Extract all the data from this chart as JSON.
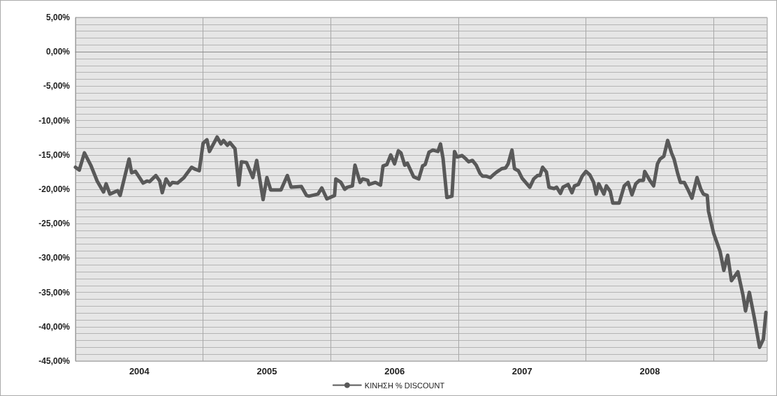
{
  "chart_data": {
    "type": "line",
    "x": [
      2004.0,
      2004.03,
      2004.07,
      2004.12,
      2004.17,
      2004.22,
      2004.24,
      2004.27,
      2004.33,
      2004.35,
      2004.42,
      2004.44,
      2004.47,
      2004.53,
      2004.56,
      2004.58,
      2004.63,
      2004.66,
      2004.68,
      2004.71,
      2004.74,
      2004.76,
      2004.8,
      2004.85,
      2004.87,
      2004.91,
      2004.94,
      2004.97,
      2005.0,
      2005.03,
      2005.05,
      2005.11,
      2005.14,
      2005.16,
      2005.19,
      2005.21,
      2005.25,
      2005.28,
      2005.3,
      2005.34,
      2005.39,
      2005.42,
      2005.47,
      2005.5,
      2005.53,
      2005.61,
      2005.66,
      2005.69,
      2005.77,
      2005.81,
      2005.83,
      2005.9,
      2005.93,
      2005.97,
      2006.03,
      2006.04,
      2006.08,
      2006.11,
      2006.13,
      2006.17,
      2006.19,
      2006.23,
      2006.25,
      2006.29,
      2006.3,
      2006.35,
      2006.39,
      2006.41,
      2006.44,
      2006.47,
      2006.5,
      2006.53,
      2006.55,
      2006.58,
      2006.6,
      2006.65,
      2006.69,
      2006.72,
      2006.74,
      2006.77,
      2006.8,
      2006.84,
      2006.86,
      2006.88,
      2006.91,
      2006.95,
      2006.97,
      2006.99,
      2007.03,
      2007.06,
      2007.08,
      2007.11,
      2007.14,
      2007.17,
      2007.19,
      2007.22,
      2007.25,
      2007.28,
      2007.3,
      2007.34,
      2007.37,
      2007.39,
      2007.42,
      2007.44,
      2007.47,
      2007.5,
      2007.56,
      2007.59,
      2007.62,
      2007.64,
      2007.66,
      2007.69,
      2007.71,
      2007.75,
      2007.77,
      2007.8,
      2007.82,
      2007.86,
      2007.89,
      2007.91,
      2007.94,
      2007.97,
      2008.0,
      2008.03,
      2008.06,
      2008.08,
      2008.1,
      2008.14,
      2008.16,
      2008.19,
      2008.21,
      2008.26,
      2008.3,
      2008.33,
      2008.36,
      2008.39,
      2008.42,
      2008.45,
      2008.46,
      2008.5,
      2008.53,
      2008.56,
      2008.58,
      2008.61,
      2008.64,
      2008.67,
      2008.69,
      2008.72,
      2008.74,
      2008.77,
      2008.8,
      2008.83,
      2008.87,
      2008.9,
      2008.92,
      2008.95,
      2008.96,
      2009.0,
      2009.05,
      2009.08,
      2009.11,
      2009.14,
      2009.19,
      2009.23,
      2009.25,
      2009.28,
      2009.32,
      2009.36,
      2009.39,
      2009.41
    ],
    "series": [
      {
        "name": "ΚΙΝΗΣΗ % DISCOUNT",
        "color": "#595959",
        "values": [
          -16.8,
          -17.2,
          -14.7,
          -16.5,
          -18.8,
          -20.4,
          -19.2,
          -20.7,
          -20.2,
          -20.9,
          -15.6,
          -17.6,
          -17.4,
          -19.1,
          -18.8,
          -18.9,
          -18.0,
          -18.8,
          -20.5,
          -18.5,
          -19.4,
          -19.0,
          -19.1,
          -18.3,
          -17.8,
          -16.8,
          -17.1,
          -17.3,
          -13.3,
          -12.8,
          -14.5,
          -12.4,
          -13.4,
          -12.9,
          -13.6,
          -13.2,
          -14.1,
          -19.4,
          -16.0,
          -16.1,
          -18.3,
          -15.8,
          -21.5,
          -18.3,
          -20.1,
          -20.1,
          -18.0,
          -19.7,
          -19.6,
          -20.9,
          -21.0,
          -20.7,
          -19.8,
          -21.4,
          -20.9,
          -18.5,
          -19.0,
          -20.0,
          -19.7,
          -19.5,
          -16.5,
          -19.0,
          -18.5,
          -18.7,
          -19.3,
          -19.0,
          -19.4,
          -16.6,
          -16.4,
          -15.0,
          -16.3,
          -14.4,
          -14.7,
          -16.5,
          -16.2,
          -18.2,
          -18.5,
          -16.6,
          -16.4,
          -14.6,
          -14.3,
          -14.5,
          -13.4,
          -15.5,
          -21.2,
          -21.0,
          -14.5,
          -15.3,
          -15.1,
          -15.6,
          -16.0,
          -15.8,
          -16.5,
          -17.7,
          -18.1,
          -18.1,
          -18.3,
          -17.8,
          -17.5,
          -17.0,
          -16.9,
          -16.3,
          -14.3,
          -17.0,
          -17.3,
          -18.4,
          -19.7,
          -18.5,
          -18.0,
          -18.0,
          -16.8,
          -17.5,
          -19.7,
          -19.9,
          -19.7,
          -20.6,
          -19.7,
          -19.3,
          -20.5,
          -19.5,
          -19.3,
          -18.1,
          -17.4,
          -17.9,
          -19.0,
          -20.7,
          -19.2,
          -20.7,
          -19.5,
          -20.3,
          -22.0,
          -22.0,
          -19.5,
          -19.0,
          -20.8,
          -19.2,
          -18.7,
          -18.7,
          -17.4,
          -18.7,
          -19.5,
          -16.3,
          -15.6,
          -15.2,
          -12.9,
          -14.7,
          -15.6,
          -17.8,
          -19.0,
          -19.0,
          -20.1,
          -21.3,
          -18.3,
          -20.0,
          -20.7,
          -20.9,
          -23.2,
          -26.4,
          -29.0,
          -31.8,
          -29.6,
          -33.3,
          -32.0,
          -35.4,
          -37.7,
          -35.0,
          -38.8,
          -43.0,
          -41.8,
          -37.9
        ]
      }
    ],
    "xlim": [
      2004,
      2009.42
    ],
    "xticks": [
      {
        "value": 2004.5,
        "label": "2004"
      },
      {
        "value": 2005,
        "label": null
      },
      {
        "value": 2005.5,
        "label": "2005"
      },
      {
        "value": 2006,
        "label": null
      },
      {
        "value": 2006.5,
        "label": "2006"
      },
      {
        "value": 2007,
        "label": null
      },
      {
        "value": 2007.5,
        "label": "2007"
      },
      {
        "value": 2008,
        "label": null
      },
      {
        "value": 2008.5,
        "label": "2008"
      },
      {
        "value": 2009,
        "label": null
      }
    ],
    "ylim": [
      -45,
      5
    ],
    "yticks": [
      {
        "value": -45,
        "label": "-45,00%"
      },
      {
        "value": -44,
        "label": null
      },
      {
        "value": -43,
        "label": null
      },
      {
        "value": -42,
        "label": null
      },
      {
        "value": -41,
        "label": null
      },
      {
        "value": -40,
        "label": "-40,00%"
      },
      {
        "value": -39,
        "label": null
      },
      {
        "value": -38,
        "label": null
      },
      {
        "value": -37,
        "label": null
      },
      {
        "value": -36,
        "label": null
      },
      {
        "value": -35,
        "label": "-35,00%"
      },
      {
        "value": -34,
        "label": null
      },
      {
        "value": -33,
        "label": null
      },
      {
        "value": -32,
        "label": null
      },
      {
        "value": -31,
        "label": null
      },
      {
        "value": -30,
        "label": "-30,00%"
      },
      {
        "value": -29,
        "label": null
      },
      {
        "value": -28,
        "label": null
      },
      {
        "value": -27,
        "label": null
      },
      {
        "value": -26,
        "label": null
      },
      {
        "value": -25,
        "label": "-25,00%"
      },
      {
        "value": -24,
        "label": null
      },
      {
        "value": -23,
        "label": null
      },
      {
        "value": -22,
        "label": null
      },
      {
        "value": -21,
        "label": null
      },
      {
        "value": -20,
        "label": "-20,00%"
      },
      {
        "value": -19,
        "label": null
      },
      {
        "value": -18,
        "label": null
      },
      {
        "value": -17,
        "label": null
      },
      {
        "value": -16,
        "label": null
      },
      {
        "value": -15,
        "label": "-15,00%"
      },
      {
        "value": -14,
        "label": null
      },
      {
        "value": -13,
        "label": null
      },
      {
        "value": -12,
        "label": null
      },
      {
        "value": -11,
        "label": null
      },
      {
        "value": -10,
        "label": "-10,00%"
      },
      {
        "value": -9,
        "label": null
      },
      {
        "value": -8,
        "label": null
      },
      {
        "value": -7,
        "label": null
      },
      {
        "value": -6,
        "label": null
      },
      {
        "value": -5,
        "label": "-5,00%"
      },
      {
        "value": -4,
        "label": null
      },
      {
        "value": -3,
        "label": null
      },
      {
        "value": -2,
        "label": null
      },
      {
        "value": -1,
        "label": null
      },
      {
        "value": 0,
        "label": "0,00%"
      },
      {
        "value": 1,
        "label": null
      },
      {
        "value": 2,
        "label": null
      },
      {
        "value": 3,
        "label": null
      },
      {
        "value": 4,
        "label": null
      },
      {
        "value": 5,
        "label": "5,00%"
      }
    ],
    "grid": true,
    "legend": "bottom",
    "marker": "none",
    "line_style": "solid"
  }
}
